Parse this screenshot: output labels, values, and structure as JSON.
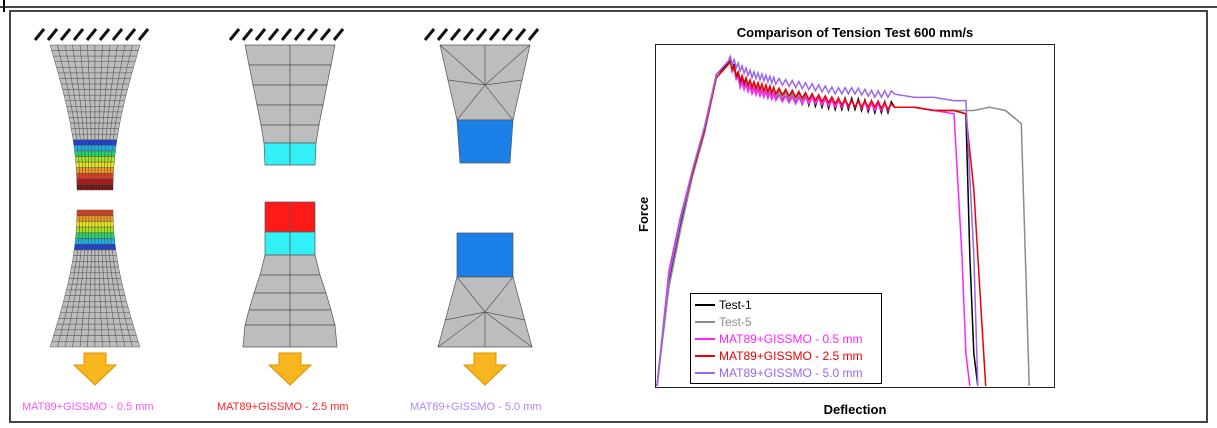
{
  "captions": [
    {
      "text": "MAT89+GISSMO - 0.5 mm",
      "color": "#ff55ff"
    },
    {
      "text": "MAT89+GISSMO - 2.5 mm",
      "color": "#ff2222"
    },
    {
      "text": "MAT89+GISSMO - 5.0 mm",
      "color": "#aa88ff"
    }
  ],
  "colors": {
    "mesh_gray": "#bdbdbd",
    "mesh_line": "#555555",
    "arrow_fill": "#f7b51e",
    "cyan": "#33f0f7",
    "red": "#ff1a1a",
    "blue": "#1a7fe6"
  },
  "icons": [
    "hatch-support-icon",
    "down-arrow-icon"
  ],
  "chart_data": {
    "type": "line",
    "title": "Comparison of Tension Test 600 mm/s",
    "xlabel": "Deflection",
    "ylabel": "Force",
    "xlim": [
      0,
      100
    ],
    "ylim": [
      0,
      100
    ],
    "grid": false,
    "legend_position": "bottom-left",
    "series": [
      {
        "name": "Test-1",
        "color": "#000000",
        "x": [
          0,
          3,
          6,
          9,
          12,
          15,
          18,
          21,
          24,
          27,
          30,
          35,
          40,
          45,
          50,
          55,
          60,
          65,
          70,
          75,
          78,
          79,
          80,
          81
        ],
        "y": [
          0,
          32,
          50,
          65,
          78,
          95,
          100,
          93,
          91,
          90,
          89,
          88,
          87,
          86,
          86,
          85,
          85,
          85,
          84,
          84,
          83,
          40,
          10,
          0
        ]
      },
      {
        "name": "Test-5",
        "color": "#8c8c8c",
        "x": [
          0,
          3,
          6,
          9,
          12,
          15,
          18,
          21,
          24,
          27,
          30,
          35,
          40,
          45,
          50,
          55,
          60,
          65,
          70,
          75,
          80,
          84,
          88,
          90,
          92,
          93,
          94
        ],
        "y": [
          0,
          30,
          48,
          64,
          77,
          94,
          99,
          92,
          91,
          90,
          89,
          88,
          87,
          86,
          86,
          85,
          85,
          85,
          84,
          84,
          84,
          85,
          84,
          82,
          80,
          40,
          0
        ]
      },
      {
        "name": "MAT89+GISSMO - 0.5 mm",
        "color": "#ff22ff",
        "x": [
          0,
          3,
          6,
          9,
          12,
          15,
          18,
          21,
          24,
          27,
          30,
          35,
          40,
          45,
          50,
          55,
          60,
          65,
          70,
          75,
          77,
          78,
          79
        ],
        "y": [
          0,
          35,
          52,
          66,
          79,
          95,
          100,
          92,
          90,
          89,
          88,
          87,
          87,
          86,
          86,
          85,
          85,
          85,
          84,
          83,
          40,
          10,
          0
        ]
      },
      {
        "name": "MAT89+GISSMO - 2.5 mm",
        "color": "#ee0000",
        "x": [
          0,
          3,
          6,
          9,
          12,
          15,
          18,
          21,
          24,
          27,
          30,
          35,
          40,
          45,
          50,
          55,
          60,
          65,
          70,
          75,
          78,
          80,
          82,
          83
        ],
        "y": [
          0,
          33,
          51,
          65,
          78,
          94,
          99,
          94,
          92,
          91,
          90,
          89,
          88,
          87,
          86,
          86,
          85,
          85,
          84,
          84,
          83,
          60,
          20,
          0
        ]
      },
      {
        "name": "MAT89+GISSMO - 5.0 mm",
        "color": "#9966ee",
        "x": [
          0,
          3,
          6,
          9,
          12,
          15,
          18,
          21,
          24,
          27,
          30,
          35,
          40,
          45,
          50,
          55,
          60,
          65,
          70,
          75,
          78,
          80,
          81
        ],
        "y": [
          0,
          33,
          51,
          66,
          79,
          95,
          100,
          97,
          95,
          94,
          93,
          92,
          91,
          90,
          90,
          89,
          89,
          88,
          88,
          87,
          87,
          40,
          0
        ]
      }
    ]
  }
}
